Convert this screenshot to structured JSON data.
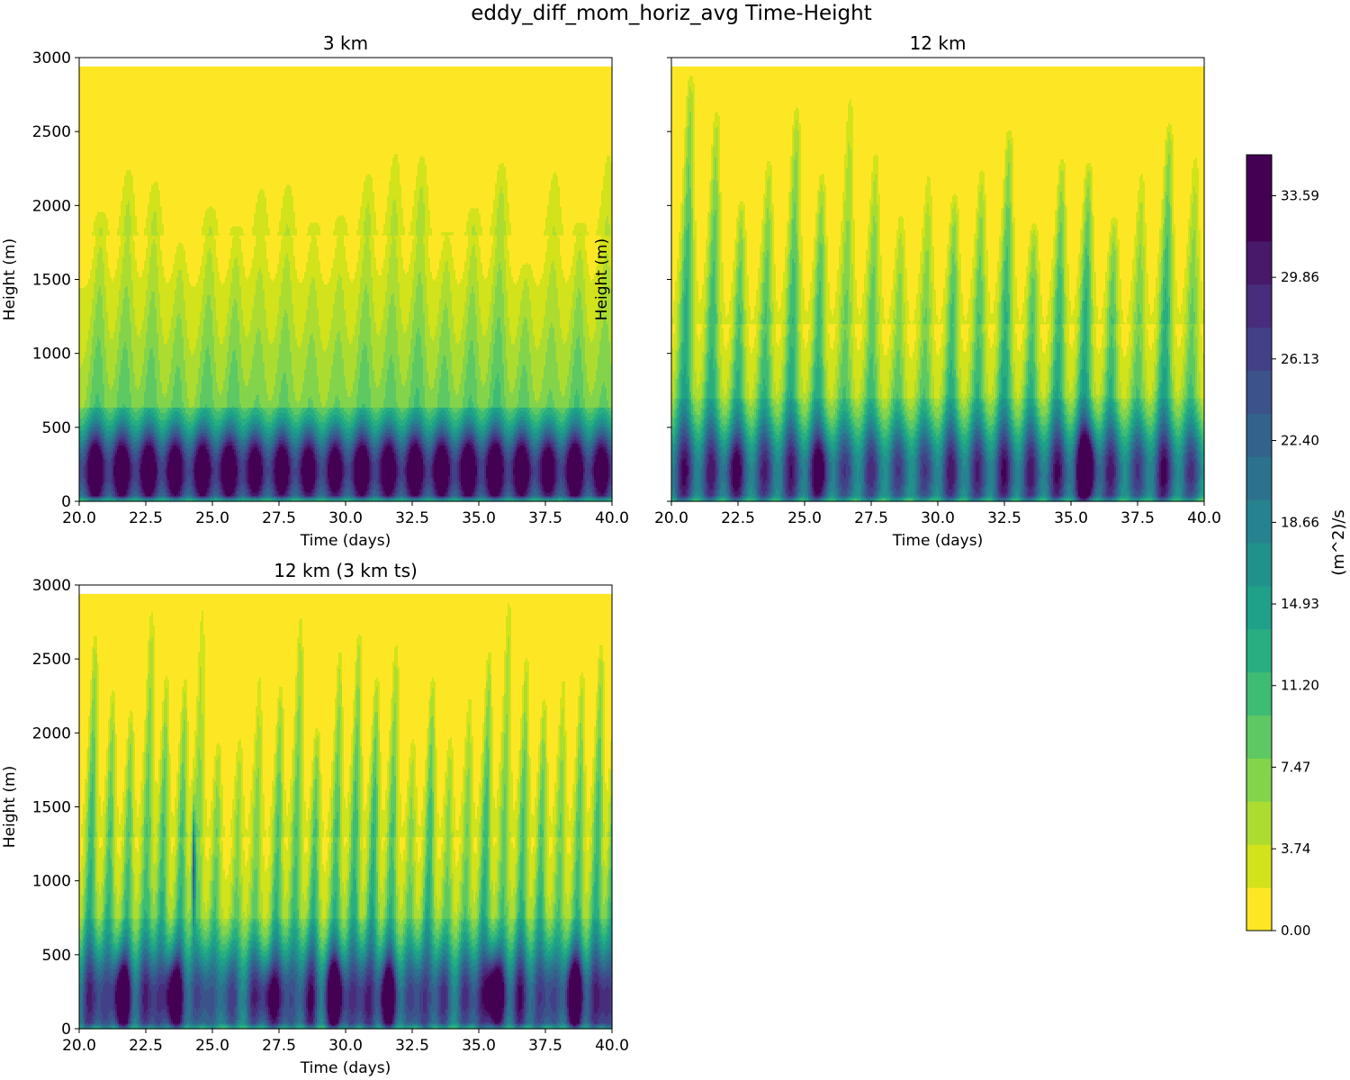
{
  "chart_data": {
    "type": "heatmap",
    "title": "eddy_diff_mom_horiz_avg Time-Height",
    "colorbar": {
      "label": "(m^2)/s",
      "min": 0.0,
      "max": 35.46,
      "levels": 19,
      "tick_values": [
        0.0,
        3.74,
        7.47,
        11.2,
        14.93,
        18.66,
        22.4,
        26.13,
        29.86,
        33.59
      ],
      "tick_labels": [
        "0.00",
        "3.74",
        "7.47",
        "11.20",
        "14.93",
        "18.66",
        "22.40",
        "26.13",
        "29.86",
        "33.59"
      ],
      "colors": [
        "#fde725",
        "#d2e21b",
        "#addc30",
        "#84d44b",
        "#5ec962",
        "#3fbc73",
        "#28ae80",
        "#1fa088",
        "#21918c",
        "#26828e",
        "#2c728e",
        "#33638d",
        "#3b528b",
        "#424086",
        "#472d7b",
        "#48186a",
        "#440154"
      ]
    },
    "panels": [
      {
        "id": "p3km",
        "title": "3 km",
        "xlabel": "Time (days)",
        "ylabel": "Height (m)",
        "xlim": [
          20.0,
          40.0
        ],
        "ylim": [
          0,
          3000
        ],
        "data_top": 2940,
        "xticks": [
          "20.0",
          "22.5",
          "25.0",
          "27.5",
          "30.0",
          "32.5",
          "35.0",
          "37.5",
          "40.0"
        ],
        "yticks": [
          "0",
          "500",
          "1000",
          "1500",
          "2000",
          "2500",
          "3000"
        ],
        "show_ytick_labels": true,
        "features": {
          "pbl_top": 640,
          "pbl_peak": 28.5,
          "pbl_peak_height": 220,
          "background": 4.5,
          "background_top": 1800,
          "plumes": [
            20.6,
            21.6,
            22.6,
            23.6,
            24.7,
            25.7,
            26.6,
            27.6,
            28.6,
            29.6,
            30.6,
            31.6,
            32.6,
            33.6,
            34.6,
            35.6,
            36.6,
            37.6,
            38.6,
            39.6
          ],
          "plume_strength": 7,
          "plume_top": 2450,
          "plume_width": 0.18
        }
      },
      {
        "id": "p12km",
        "title": "12 km",
        "xlabel": "Time (days)",
        "ylabel": "Height (m)",
        "xlim": [
          20.0,
          40.0
        ],
        "ylim": [
          0,
          3000
        ],
        "data_top": 2940,
        "xticks": [
          "20.0",
          "22.5",
          "25.0",
          "27.5",
          "30.0",
          "32.5",
          "35.0",
          "37.5",
          "40.0"
        ],
        "yticks": [
          "0",
          "500",
          "1000",
          "1500",
          "2000",
          "2500",
          "3000"
        ],
        "show_ytick_labels": false,
        "features": {
          "pbl_top": 700,
          "pbl_peak": 16,
          "pbl_peak_height": 220,
          "background": 3,
          "background_top": 1200,
          "plumes": [
            20.4,
            21.4,
            22.4,
            23.4,
            24.4,
            25.4,
            26.4,
            27.4,
            28.4,
            29.4,
            30.4,
            31.4,
            32.4,
            33.4,
            34.4,
            35.4,
            36.4,
            37.4,
            38.4,
            39.4
          ],
          "plume_strength": 15,
          "plume_top": 2900,
          "plume_width": 0.14,
          "hotspots": [
            [
              35.6,
              240,
              14,
              0.4,
              250
            ],
            [
              25.6,
              220,
              7,
              0.4,
              200
            ],
            [
              22.3,
              220,
              6,
              0.3,
              200
            ]
          ]
        }
      },
      {
        "id": "p12km3",
        "title": "12 km (3 km ts)",
        "xlabel": "Time (days)",
        "ylabel": "Height (m)",
        "xlim": [
          20.0,
          40.0
        ],
        "ylim": [
          0,
          3000
        ],
        "data_top": 2940,
        "xticks": [
          "20.0",
          "22.5",
          "25.0",
          "27.5",
          "30.0",
          "32.5",
          "35.0",
          "37.5",
          "40.0"
        ],
        "yticks": [
          "0",
          "500",
          "1000",
          "1500",
          "2000",
          "2500",
          "3000"
        ],
        "show_ytick_labels": true,
        "features": {
          "pbl_top": 750,
          "pbl_peak": 17,
          "pbl_peak_height": 230,
          "background": 3,
          "background_top": 1300,
          "plumes": [
            20.3,
            21.0,
            21.7,
            22.4,
            23.0,
            23.7,
            24.3,
            25.0,
            25.8,
            26.5,
            27.3,
            28.0,
            28.7,
            29.5,
            30.2,
            30.9,
            31.6,
            32.3,
            33.0,
            33.7,
            34.4,
            35.1,
            35.8,
            36.5,
            37.2,
            37.9,
            38.6,
            39.3,
            39.9
          ],
          "plume_strength": 14,
          "plume_top": 2930,
          "plume_width": 0.11,
          "hotspots": [
            [
              21.6,
              230,
              13,
              0.35,
              230
            ],
            [
              23.5,
              230,
              12,
              0.35,
              230
            ],
            [
              27.1,
              220,
              11,
              0.35,
              220
            ],
            [
              29.6,
              240,
              15,
              0.35,
              230
            ],
            [
              31.6,
              220,
              11,
              0.35,
              220
            ],
            [
              35.6,
              250,
              15,
              0.4,
              240
            ],
            [
              38.6,
              240,
              14,
              0.35,
              240
            ],
            [
              24.3,
              1100,
              18,
              0.06,
              350
            ]
          ]
        }
      }
    ]
  }
}
